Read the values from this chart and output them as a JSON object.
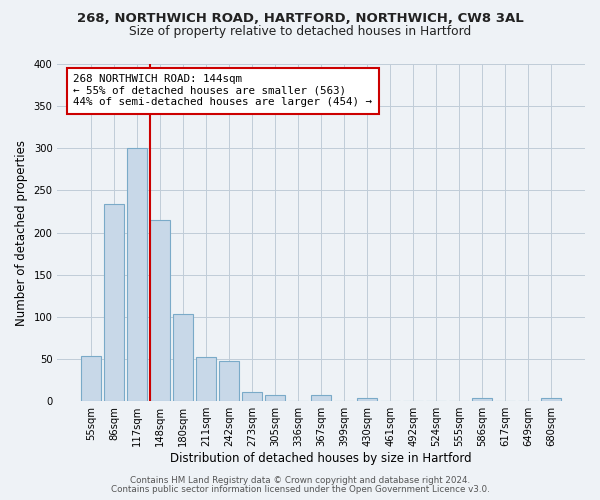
{
  "title1": "268, NORTHWICH ROAD, HARTFORD, NORTHWICH, CW8 3AL",
  "title2": "Size of property relative to detached houses in Hartford",
  "xlabel": "Distribution of detached houses by size in Hartford",
  "ylabel": "Number of detached properties",
  "bin_labels": [
    "55sqm",
    "86sqm",
    "117sqm",
    "148sqm",
    "180sqm",
    "211sqm",
    "242sqm",
    "273sqm",
    "305sqm",
    "336sqm",
    "367sqm",
    "399sqm",
    "430sqm",
    "461sqm",
    "492sqm",
    "524sqm",
    "555sqm",
    "586sqm",
    "617sqm",
    "649sqm",
    "680sqm"
  ],
  "bar_values": [
    54,
    234,
    300,
    215,
    103,
    52,
    48,
    11,
    7,
    0,
    7,
    0,
    4,
    0,
    0,
    0,
    0,
    4,
    0,
    0,
    4
  ],
  "bar_color": "#c8d8e8",
  "bar_edge_color": "#7aaac8",
  "vline_color": "#cc0000",
  "annotation_title": "268 NORTHWICH ROAD: 144sqm",
  "annotation_line1": "← 55% of detached houses are smaller (563)",
  "annotation_line2": "44% of semi-detached houses are larger (454) →",
  "annotation_box_color": "#ffffff",
  "annotation_box_edge": "#cc0000",
  "ylim": [
    0,
    400
  ],
  "yticks": [
    0,
    50,
    100,
    150,
    200,
    250,
    300,
    350,
    400
  ],
  "footer1": "Contains HM Land Registry data © Crown copyright and database right 2024.",
  "footer2": "Contains public sector information licensed under the Open Government Licence v3.0.",
  "bg_color": "#eef2f6"
}
